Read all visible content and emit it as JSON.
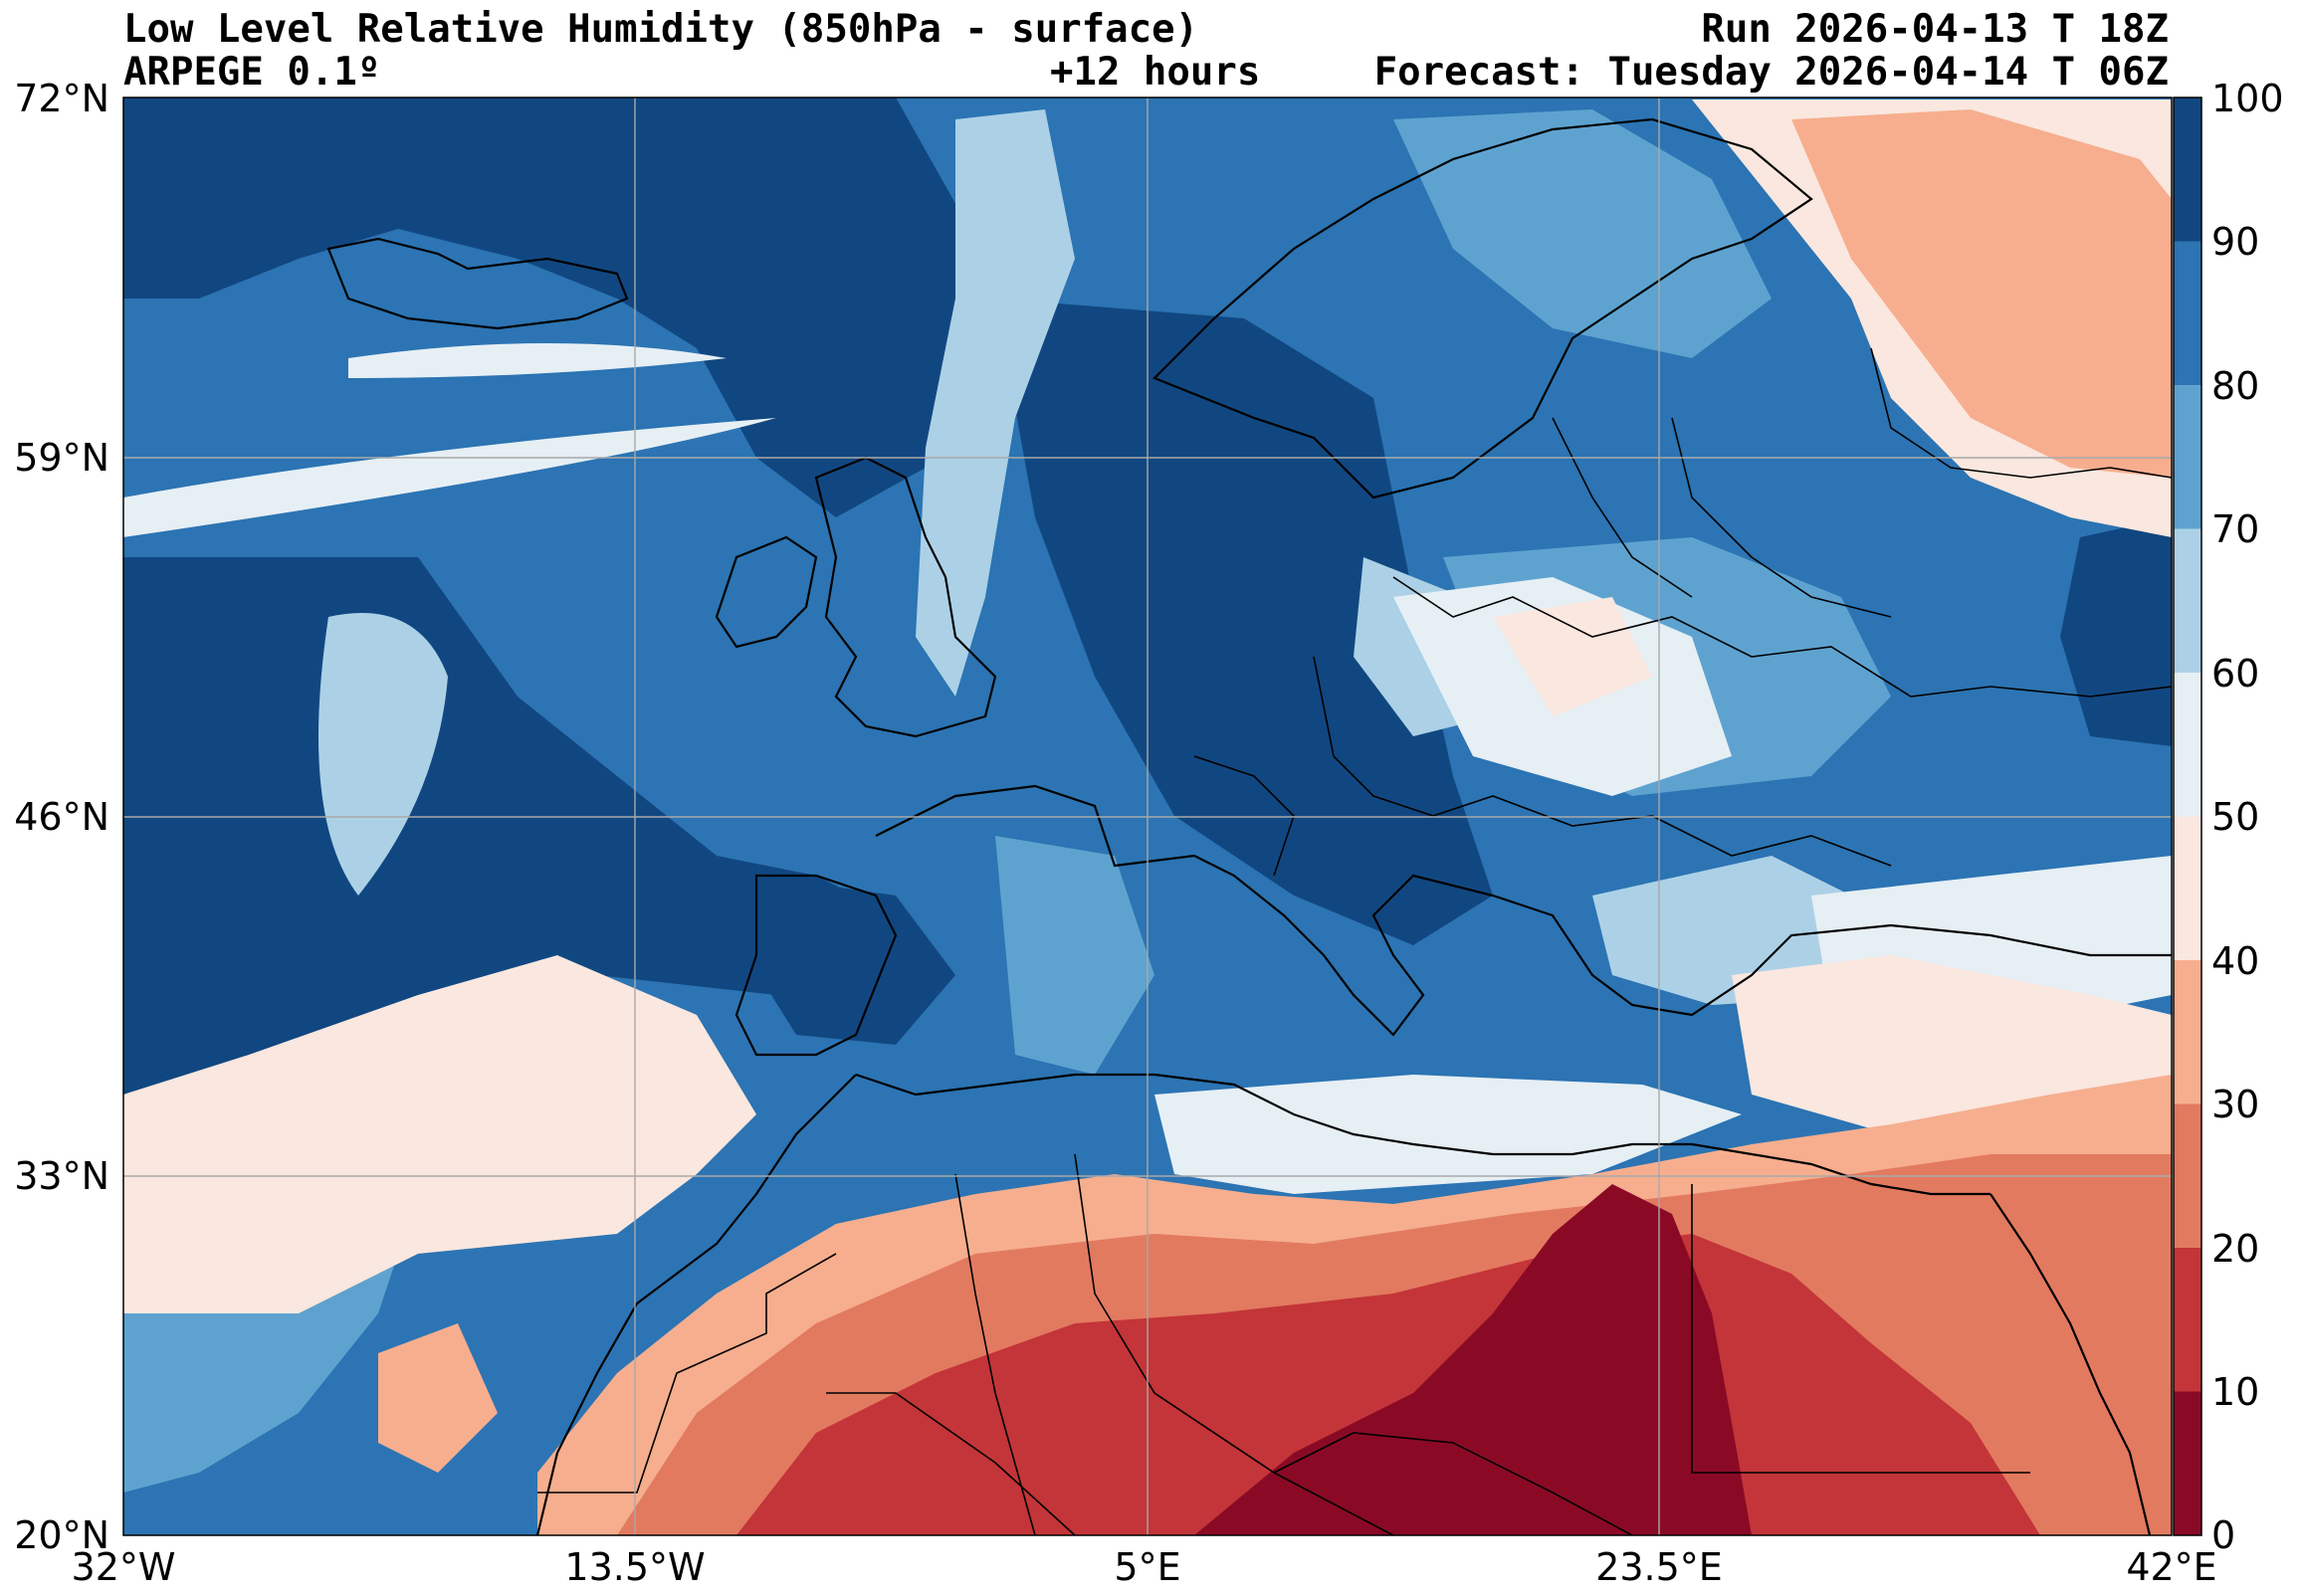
{
  "header": {
    "title": "Low Level Relative Humidity (850hPa - surface)",
    "run": "Run 2026-04-13 T 18Z",
    "model": "ARPEGE 0.1º",
    "lead_time": "+12 hours",
    "forecast": "Forecast: Tuesday 2026-04-14 T 06Z"
  },
  "map": {
    "lat_labels": [
      "72°N",
      "59°N",
      "46°N",
      "33°N",
      "20°N"
    ],
    "lon_labels": [
      "32°W",
      "13.5°W",
      "5°E",
      "23.5°E",
      "42°E"
    ]
  },
  "colorbar": {
    "labels": [
      "100",
      "90",
      "80",
      "70",
      "60",
      "50",
      "40",
      "30",
      "20",
      "10",
      "0"
    ],
    "colors": [
      "#114781",
      "#2c74b3",
      "#5ea3d0",
      "#acd1e6",
      "#e6eff4",
      "#fae7df",
      "#f6ae8e",
      "#e27a60",
      "#c33538",
      "#8a0a26"
    ]
  }
}
